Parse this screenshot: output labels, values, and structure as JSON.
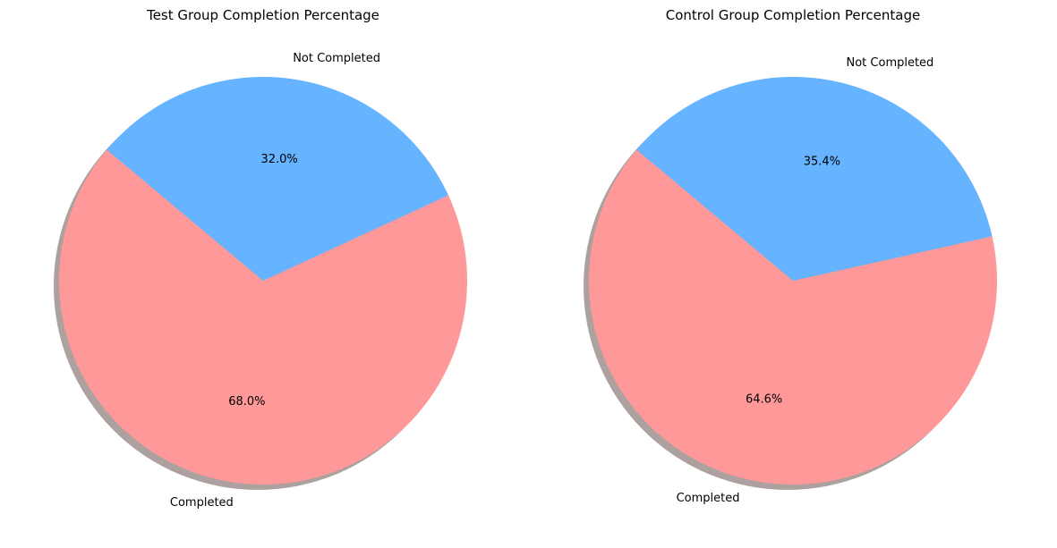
{
  "chart_data": [
    {
      "type": "pie",
      "title": "Test Group Completion Percentage",
      "labels": [
        "Completed",
        "Not Completed"
      ],
      "values": [
        68.0,
        32.0
      ],
      "percent_labels": [
        "68.0%",
        "32.0%"
      ],
      "colors": [
        "#ff9999",
        "#66b3ff"
      ],
      "start_angle_deg": 140,
      "shadow": true
    },
    {
      "type": "pie",
      "title": "Control Group Completion Percentage",
      "labels": [
        "Completed",
        "Not Completed"
      ],
      "values": [
        64.6,
        35.4
      ],
      "percent_labels": [
        "64.6%",
        "35.4%"
      ],
      "colors": [
        "#ff9999",
        "#66b3ff"
      ],
      "start_angle_deg": 140,
      "shadow": true
    }
  ]
}
